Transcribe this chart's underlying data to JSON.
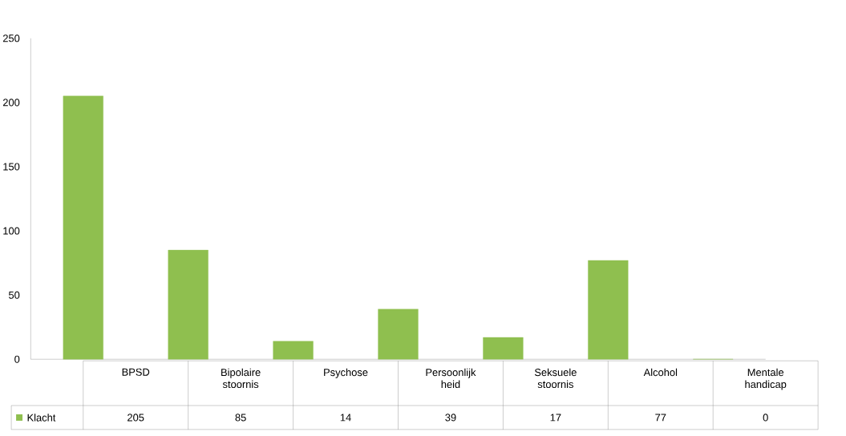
{
  "chart_data": {
    "type": "bar",
    "categories": [
      "BPSD",
      "Bipolaire stoornis",
      "Psychose",
      "Persoonlijk heid",
      "Seksuele stoornis",
      "Alcohol",
      "Mentale handicap"
    ],
    "series": [
      {
        "name": "Klacht",
        "color": "#8fbf4f",
        "values": [
          205,
          85,
          14,
          39,
          17,
          77,
          0
        ]
      }
    ],
    "ylim": [
      0,
      250
    ],
    "yticks": [
      0,
      50,
      100,
      150,
      200,
      250
    ],
    "data_labels": true,
    "legend": "bottom"
  }
}
